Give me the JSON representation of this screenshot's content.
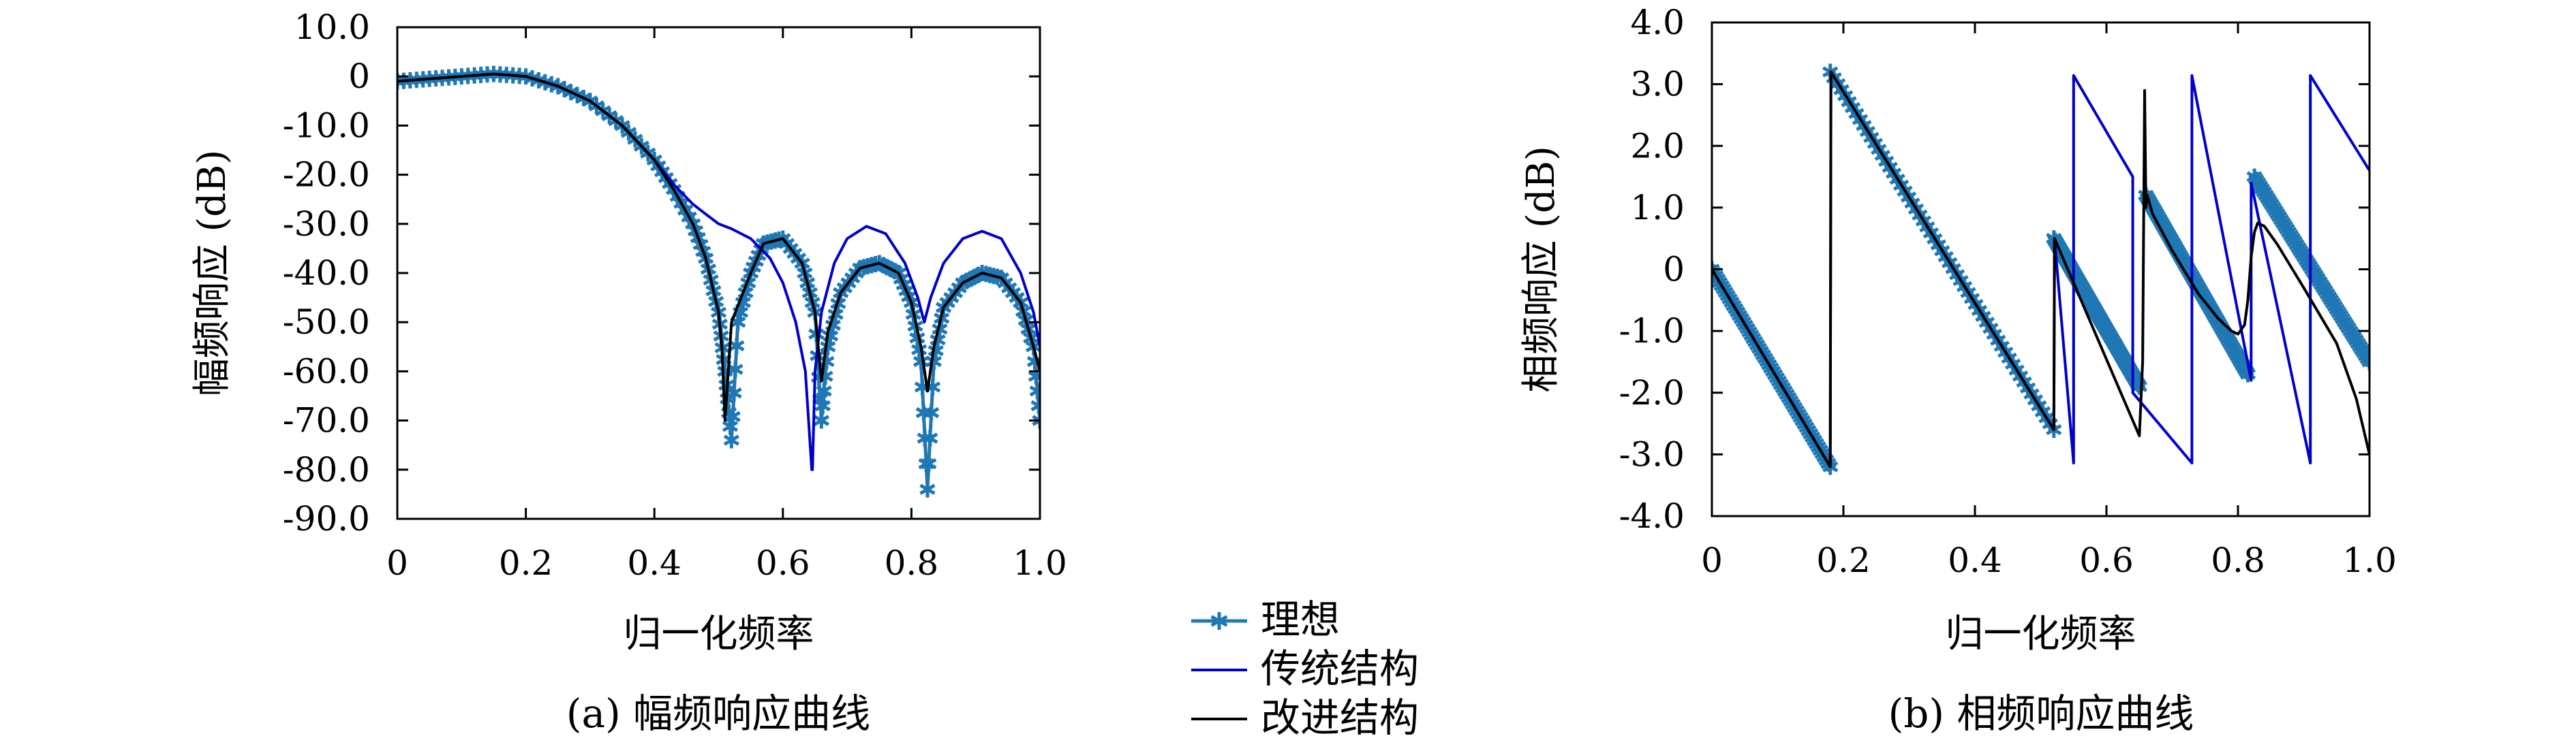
{
  "chart_data": [
    {
      "type": "line",
      "caption": "(a) 幅频响应曲线",
      "xlabel": "归一化频率",
      "ylabel": "幅频响应 (dB)",
      "xlim": [
        0,
        1.0
      ],
      "ylim": [
        -90,
        10
      ],
      "xticks": [
        {
          "v": 0,
          "label": "0"
        },
        {
          "v": 0.2,
          "label": "0.2"
        },
        {
          "v": 0.4,
          "label": "0.4"
        },
        {
          "v": 0.6,
          "label": "0.6"
        },
        {
          "v": 0.8,
          "label": "0.8"
        },
        {
          "v": 1.0,
          "label": "1.0"
        }
      ],
      "yticks": [
        {
          "v": 10,
          "label": "10.0"
        },
        {
          "v": 0,
          "label": "0"
        },
        {
          "v": -10,
          "label": "-10.0"
        },
        {
          "v": -20,
          "label": "-20.0"
        },
        {
          "v": -30,
          "label": "-30.0"
        },
        {
          "v": -40,
          "label": "-40.0"
        },
        {
          "v": -50,
          "label": "-50.0"
        },
        {
          "v": -60,
          "label": "-60.0"
        },
        {
          "v": -70,
          "label": "-70.0"
        },
        {
          "v": -80,
          "label": "-80.0"
        },
        {
          "v": -90,
          "label": "-90.0"
        }
      ],
      "grid": false,
      "series": [
        {
          "name": "理想",
          "color": "#1f77b4",
          "marker": "asterisk",
          "x": [
            0,
            0.05,
            0.1,
            0.15,
            0.2,
            0.25,
            0.3,
            0.35,
            0.4,
            0.43,
            0.46,
            0.48,
            0.5,
            0.51,
            0.52,
            0.53,
            0.55,
            0.57,
            0.6,
            0.63,
            0.65,
            0.66,
            0.67,
            0.69,
            0.72,
            0.75,
            0.78,
            0.8,
            0.815,
            0.825,
            0.835,
            0.85,
            0.88,
            0.91,
            0.94,
            0.97,
            0.99,
            1.0
          ],
          "y": [
            -1,
            -0.5,
            0,
            0.5,
            0,
            -2,
            -5,
            -10,
            -17,
            -23,
            -30,
            -37,
            -48,
            -60,
            -74,
            -50,
            -40,
            -34,
            -33,
            -38,
            -48,
            -70,
            -55,
            -44,
            -39,
            -38,
            -40,
            -46,
            -58,
            -84,
            -58,
            -47,
            -42,
            -40,
            -41,
            -46,
            -55,
            -70
          ]
        },
        {
          "name": "传统结构",
          "color": "#0000cc",
          "marker": "none",
          "x": [
            0,
            0.05,
            0.1,
            0.15,
            0.2,
            0.25,
            0.3,
            0.35,
            0.4,
            0.43,
            0.46,
            0.48,
            0.5,
            0.52,
            0.55,
            0.58,
            0.6,
            0.62,
            0.635,
            0.645,
            0.646,
            0.65,
            0.66,
            0.68,
            0.7,
            0.73,
            0.76,
            0.79,
            0.81,
            0.82,
            0.83,
            0.85,
            0.88,
            0.91,
            0.94,
            0.97,
            0.99,
            1.0
          ],
          "y": [
            -1,
            -0.5,
            0,
            0.5,
            0,
            -2,
            -5,
            -10,
            -17,
            -22,
            -26,
            -28,
            -30,
            -31,
            -33,
            -37,
            -42,
            -50,
            -60,
            -80,
            -80,
            -60,
            -48,
            -38,
            -33,
            -30.5,
            -32,
            -38,
            -45,
            -50,
            -45,
            -38,
            -33,
            -31.5,
            -33,
            -40,
            -48,
            -55
          ]
        },
        {
          "name": "改进结构",
          "color": "#000000",
          "marker": "none",
          "x": [
            0,
            0.05,
            0.1,
            0.15,
            0.2,
            0.25,
            0.3,
            0.35,
            0.4,
            0.43,
            0.46,
            0.48,
            0.5,
            0.505,
            0.51,
            0.52,
            0.55,
            0.57,
            0.6,
            0.63,
            0.65,
            0.66,
            0.67,
            0.69,
            0.72,
            0.75,
            0.78,
            0.8,
            0.815,
            0.825,
            0.835,
            0.85,
            0.88,
            0.91,
            0.94,
            0.97,
            0.99,
            1.0
          ],
          "y": [
            -1,
            -0.5,
            0,
            0.5,
            0,
            -2,
            -5,
            -10,
            -17,
            -23,
            -30,
            -37,
            -48,
            -55,
            -70,
            -50,
            -40,
            -34,
            -33,
            -38,
            -48,
            -62,
            -52,
            -44,
            -39,
            -38,
            -40,
            -46,
            -55,
            -64,
            -55,
            -47,
            -42,
            -40,
            -41,
            -46,
            -55,
            -60
          ]
        }
      ]
    },
    {
      "type": "line",
      "caption": "(b) 相频响应曲线",
      "xlabel": "归一化频率",
      "ylabel": "相频响应 (dB)",
      "xlim": [
        0,
        1.0
      ],
      "ylim": [
        -4,
        4
      ],
      "xticks": [
        {
          "v": 0,
          "label": "0"
        },
        {
          "v": 0.2,
          "label": "0.2"
        },
        {
          "v": 0.4,
          "label": "0.4"
        },
        {
          "v": 0.6,
          "label": "0.6"
        },
        {
          "v": 0.8,
          "label": "0.8"
        },
        {
          "v": 1.0,
          "label": "1.0"
        }
      ],
      "yticks": [
        {
          "v": 4,
          "label": "4.0"
        },
        {
          "v": 3,
          "label": "3.0"
        },
        {
          "v": 2,
          "label": "2.0"
        },
        {
          "v": 1,
          "label": "1.0"
        },
        {
          "v": 0,
          "label": "0"
        },
        {
          "v": -1,
          "label": "-1.0"
        },
        {
          "v": -2,
          "label": "-2.0"
        },
        {
          "v": -3,
          "label": "-3.0"
        },
        {
          "v": -4,
          "label": "-4.0"
        }
      ],
      "grid": false,
      "series": [
        {
          "name": "理想",
          "color": "#1f77b4",
          "marker": "asterisk",
          "segments": [
            {
              "x": [
                0,
                0.18
              ],
              "y": [
                0,
                -3.2
              ]
            },
            {
              "x": [
                0.18,
                0.52
              ],
              "y": [
                3.2,
                -2.6
              ]
            },
            {
              "x": [
                0.52,
                0.65
              ],
              "y": [
                0.5,
                -1.9
              ]
            },
            {
              "x": [
                0.66,
                0.815
              ],
              "y": [
                1.2,
                -1.7
              ]
            },
            {
              "x": [
                0.825,
                1.0
              ],
              "y": [
                1.5,
                -1.5
              ]
            }
          ]
        },
        {
          "name": "传统结构",
          "color": "#0000cc",
          "marker": "none",
          "x": [
            0,
            0.18,
            0.181,
            0.52,
            0.521,
            0.55,
            0.55,
            0.64,
            0.64,
            0.73,
            0.73,
            0.82,
            0.82,
            0.91,
            0.91,
            1.0
          ],
          "y": [
            0,
            -3.2,
            3.2,
            -2.6,
            0.5,
            -3.14,
            3.14,
            1.5,
            -2.0,
            -3.14,
            3.14,
            -1.8,
            1.4,
            -3.14,
            3.14,
            1.6
          ]
        },
        {
          "name": "改进结构",
          "color": "#000000",
          "marker": "none",
          "x": [
            0,
            0.18,
            0.181,
            0.52,
            0.521,
            0.65,
            0.655,
            0.658,
            0.66,
            0.662,
            0.67,
            0.7,
            0.74,
            0.77,
            0.79,
            0.8,
            0.81,
            0.815,
            0.82,
            0.825,
            0.83,
            0.84,
            0.86,
            0.9,
            0.95,
            0.98,
            1.0
          ],
          "y": [
            0,
            -3.2,
            3.2,
            -2.6,
            0.5,
            -2.7,
            -1.5,
            2.9,
            1.0,
            1.2,
            0.9,
            0.3,
            -0.4,
            -0.8,
            -1.0,
            -1.05,
            -0.9,
            -0.5,
            0.2,
            0.6,
            0.75,
            0.7,
            0.4,
            -0.3,
            -1.2,
            -2.1,
            -3.0
          ]
        }
      ]
    }
  ],
  "legend": {
    "placement": "bottom-center",
    "entries": [
      {
        "label": "理想",
        "color": "#1f77b4",
        "marker": "asterisk"
      },
      {
        "label": "传统结构",
        "color": "#0000cc",
        "marker": "none"
      },
      {
        "label": "改进结构",
        "color": "#000000",
        "marker": "none"
      }
    ]
  }
}
